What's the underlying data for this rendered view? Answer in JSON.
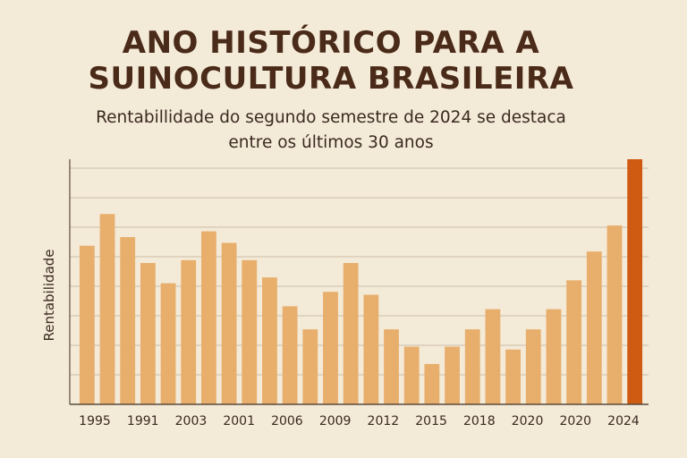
{
  "title_lines": [
    "ANO HISTÓRICO PARA A",
    "SUINOCULTURA BRASILEIRA"
  ],
  "subtitle_lines": [
    "Rentabillidade do segundo semestre de 2024 se destaca",
    "entre os últimos 30 anos"
  ],
  "colors": {
    "background": "#f4ead8",
    "bar": "#e8ae6c",
    "highlight": "#cf5a12",
    "grid": "#cdbfa9",
    "axis": "#5a4a3a",
    "text": "#3a2a20",
    "title": "#4a2a18"
  },
  "chart_data": {
    "type": "bar",
    "title": "ANO HISTÓRICO PARA A SUINOCULTURA BRASILEIRA",
    "subtitle": "Rentabillidade do segundo semestre de 2024 se destaca entre os últimos 30 anos",
    "ylabel": "Rentabilidade",
    "xlabel": "",
    "ylim": [
      0,
      8.5
    ],
    "grid": "horizontal",
    "tick_labels": [
      "1995",
      "1991",
      "2003",
      "2001",
      "2006",
      "2009",
      "2012",
      "2015",
      "2018",
      "2020",
      "2020",
      "2024"
    ],
    "values": [
      5.5,
      6.6,
      5.8,
      4.9,
      4.2,
      5.0,
      6.0,
      5.6,
      5.0,
      4.4,
      3.4,
      2.6,
      3.9,
      4.9,
      3.8,
      2.6,
      2.0,
      1.4,
      2.0,
      2.6,
      3.3,
      1.9,
      2.6,
      3.3,
      4.3,
      5.3,
      6.2,
      8.5
    ],
    "highlight_index": 27
  }
}
